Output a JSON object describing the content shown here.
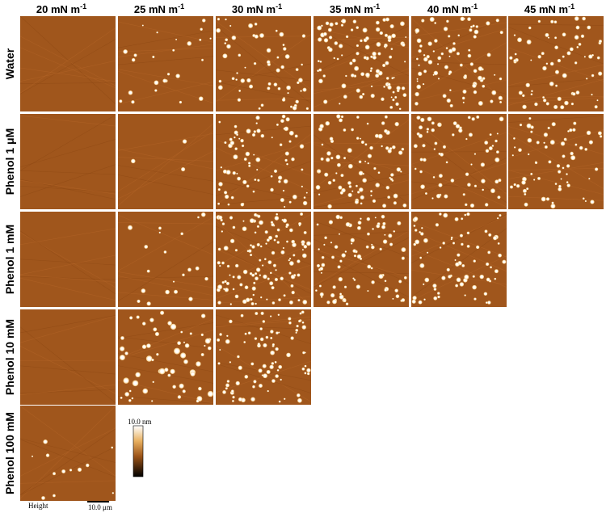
{
  "columns": [
    {
      "label": "20 mN m",
      "sup": "-1"
    },
    {
      "label": "25 mN m",
      "sup": "-1"
    },
    {
      "label": "30 mN m",
      "sup": "-1"
    },
    {
      "label": "35 mN m",
      "sup": "-1"
    },
    {
      "label": "40 mN m",
      "sup": "-1"
    },
    {
      "label": "45 mN m",
      "sup": "-1"
    }
  ],
  "rows": [
    {
      "label": "Water"
    },
    {
      "label": "Phenol 1 μM"
    },
    {
      "label": "Phenol 1 mM"
    },
    {
      "label": "Phenol 10 mM"
    },
    {
      "label": "Phenol 100 mM"
    }
  ],
  "colorbar": {
    "label": "10.0 nm"
  },
  "image_label": "Height",
  "scale_bar": "10.0 μm"
}
